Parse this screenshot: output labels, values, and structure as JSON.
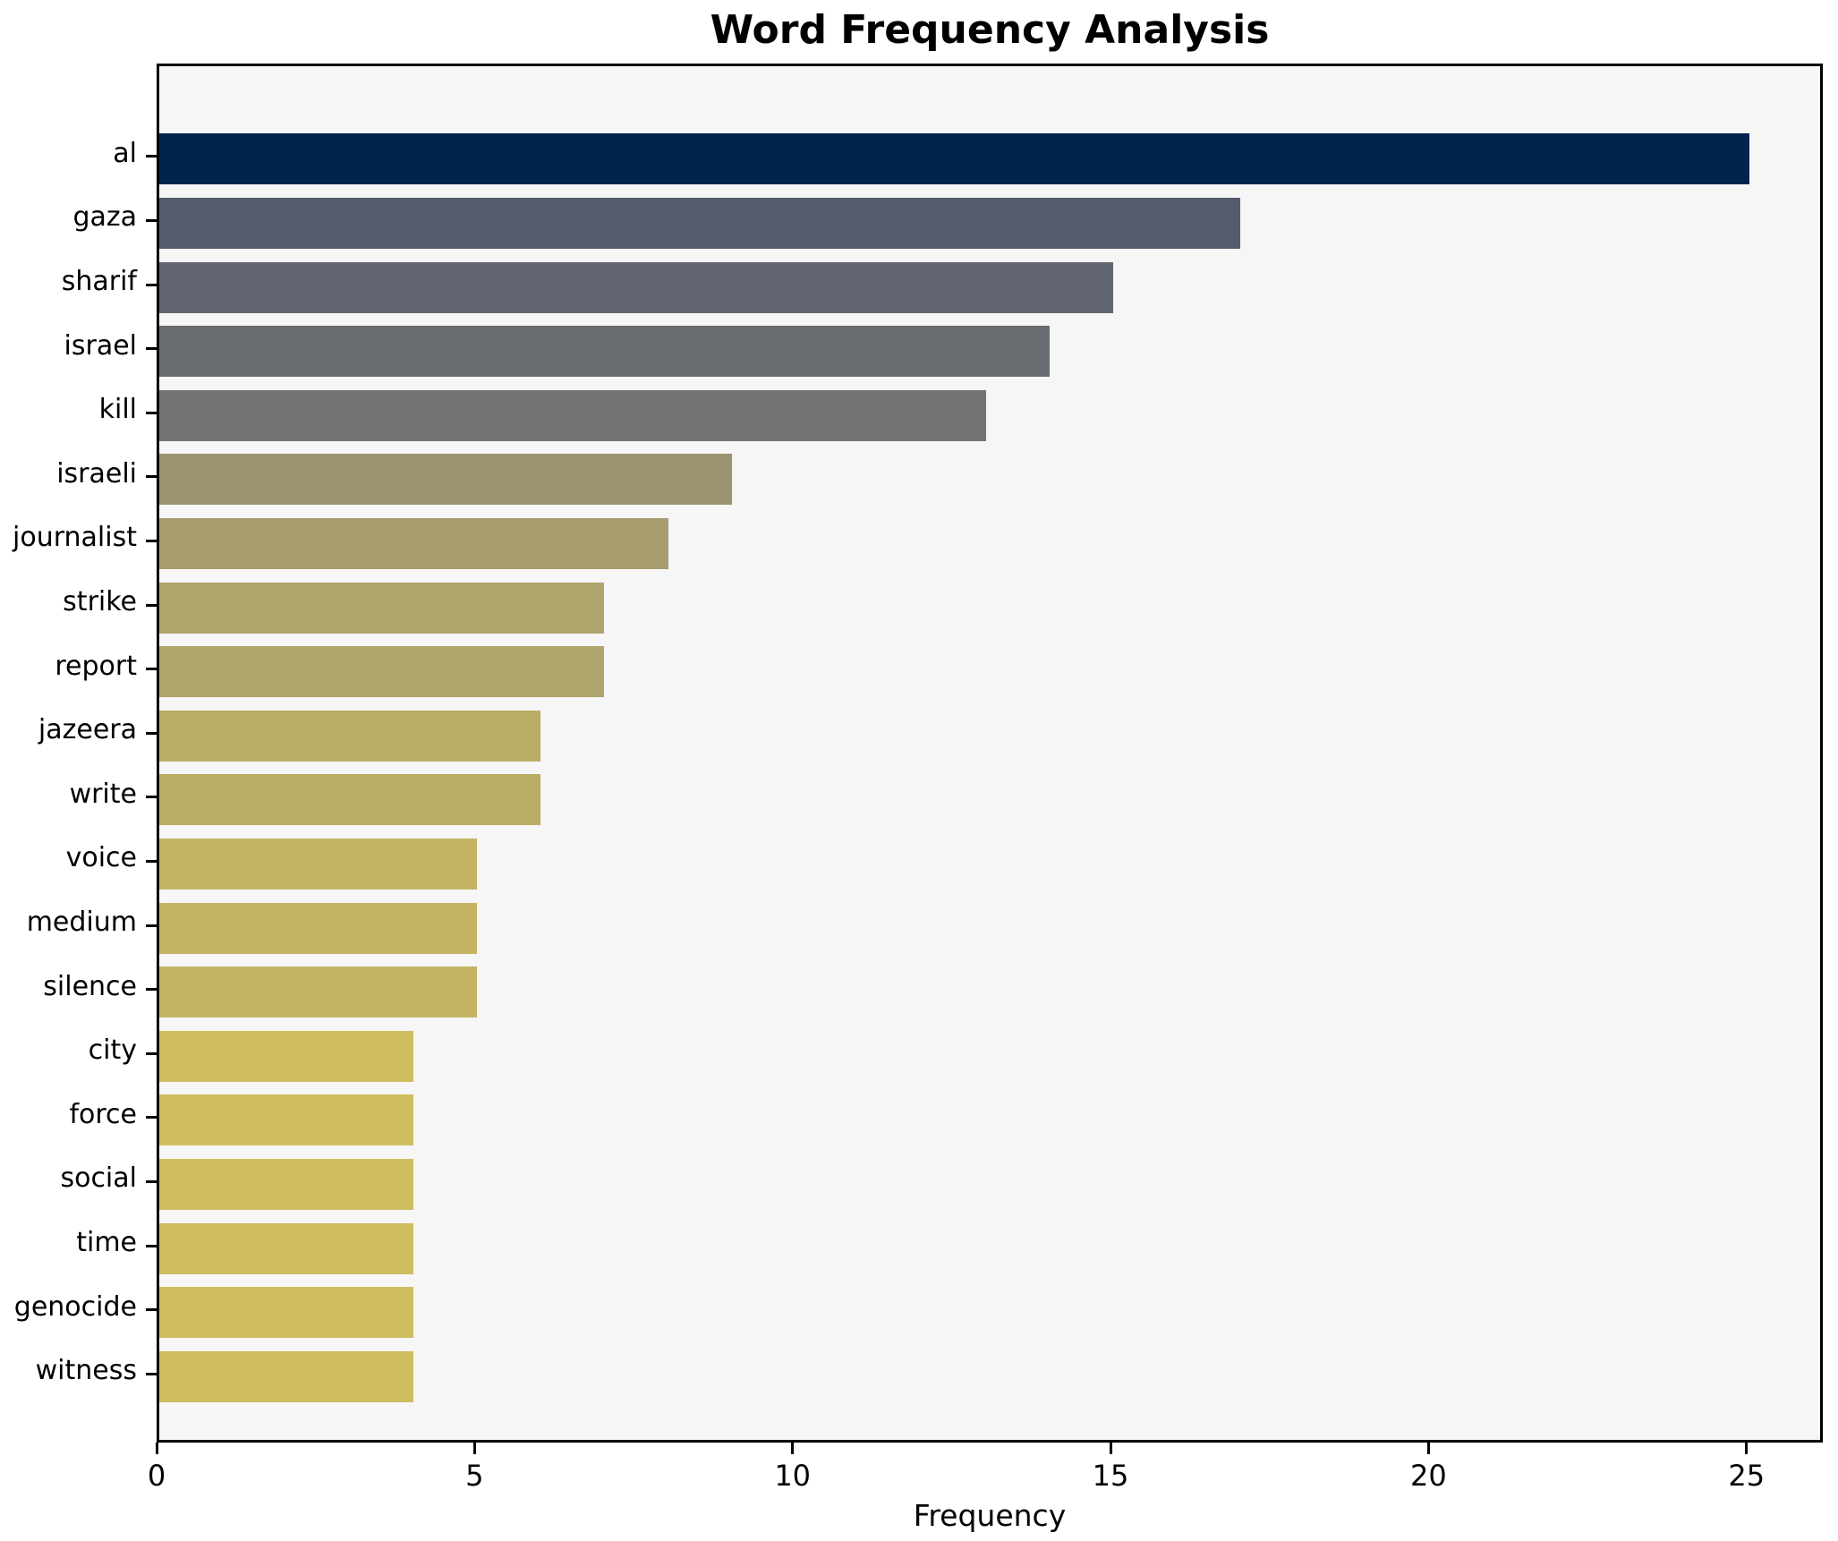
{
  "title": "Word Frequency Analysis",
  "chart_data": {
    "type": "bar",
    "orientation": "horizontal",
    "title": "Word Frequency Analysis",
    "xlabel": "Frequency",
    "ylabel": "",
    "categories": [
      "al",
      "gaza",
      "sharif",
      "israel",
      "kill",
      "israeli",
      "journalist",
      "strike",
      "report",
      "jazeera",
      "write",
      "voice",
      "medium",
      "silence",
      "city",
      "force",
      "social",
      "time",
      "genocide",
      "witness"
    ],
    "values": [
      25,
      17,
      15,
      14,
      13,
      9,
      8,
      7,
      7,
      6,
      6,
      5,
      5,
      5,
      4,
      4,
      4,
      4,
      4,
      4
    ],
    "bar_colors": [
      "#01244f",
      "#555b6c",
      "#61656f",
      "#696c71",
      "#717375",
      "#9c9370",
      "#a79d6e",
      "#aea46c",
      "#aea46c",
      "#bbad67",
      "#bbad67",
      "#c4b464",
      "#c4b464",
      "#c4b464",
      "#d0bd5f",
      "#d0bd5f",
      "#d0bd5f",
      "#d0bd5f",
      "#d0bd5f",
      "#d0bd5f"
    ],
    "xticks": [
      0,
      5,
      10,
      15,
      20,
      25
    ],
    "xlim": [
      0,
      26.2
    ],
    "grid": false,
    "legend": null,
    "colormap": "cividis (dark navy = high frequency, khaki yellow = low frequency)",
    "plot_background": "#f6f6f7",
    "figure_background": "#ffffff",
    "spine_color": "#000000"
  }
}
